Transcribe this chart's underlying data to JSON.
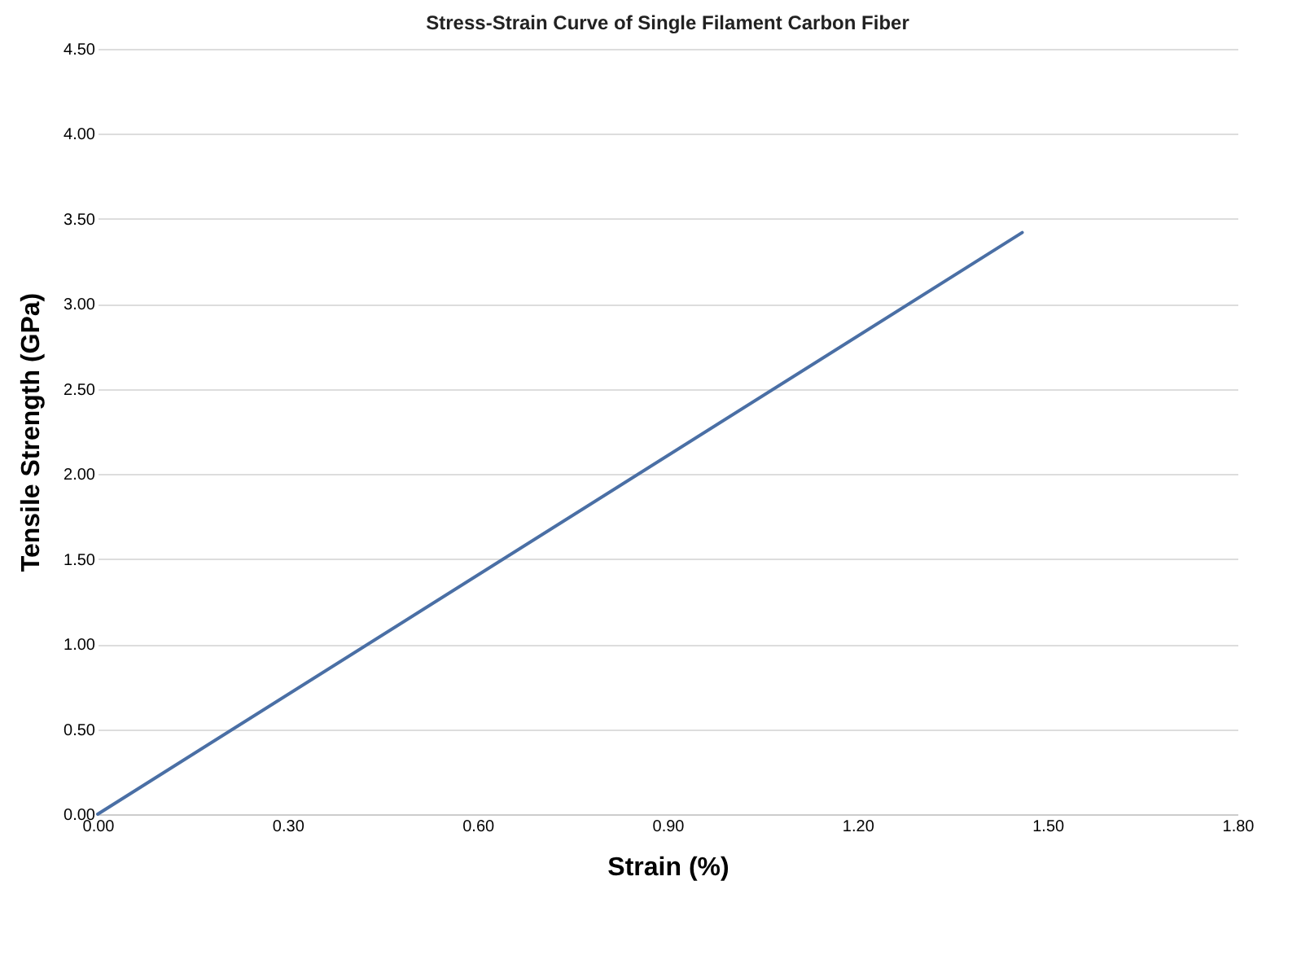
{
  "chart_data": {
    "type": "line",
    "title": "Stress-Strain Curve of Single Filament Carbon Fiber",
    "xlabel": "Strain (%)",
    "ylabel": "Tensile Strength  (GPa)",
    "x": [
      0,
      1.46
    ],
    "series": [
      {
        "color": "#4a6fa5",
        "values": [
          0,
          3.42
        ]
      }
    ],
    "xlim": [
      0,
      1.8
    ],
    "xticks": [
      {
        "value": 0,
        "label": "0.00"
      },
      {
        "value": 0.3,
        "label": "0.30"
      },
      {
        "value": 0.6,
        "label": "0.60"
      },
      {
        "value": 0.9,
        "label": "0.90"
      },
      {
        "value": 1.2,
        "label": "1.20"
      },
      {
        "value": 1.5,
        "label": "1.50"
      },
      {
        "value": 1.8,
        "label": "1.80"
      }
    ],
    "ylim": [
      0,
      4.5
    ],
    "yticks": [
      {
        "value": 0,
        "label": "0.00"
      },
      {
        "value": 0.5,
        "label": "0.50"
      },
      {
        "value": 1,
        "label": "1.00"
      },
      {
        "value": 1.5,
        "label": "1.50"
      },
      {
        "value": 2,
        "label": "2.00"
      },
      {
        "value": 2.5,
        "label": "2.50"
      },
      {
        "value": 3,
        "label": "3.00"
      },
      {
        "value": 3.5,
        "label": "3.50"
      },
      {
        "value": 4,
        "label": "4.00"
      },
      {
        "value": 4.5,
        "label": "4.50"
      }
    ],
    "grid": "y",
    "marker": "none",
    "line_style": "solid"
  }
}
